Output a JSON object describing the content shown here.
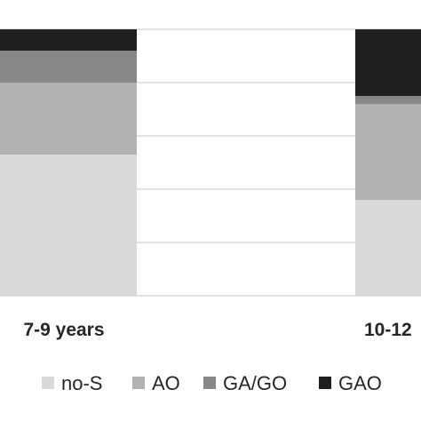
{
  "chart_data": {
    "type": "bar",
    "stacked": true,
    "normalized": true,
    "categories": [
      "7-9 years",
      "10-12"
    ],
    "series": [
      {
        "name": "no-S",
        "values": [
          53,
          36
        ],
        "color": "#d9d9d9"
      },
      {
        "name": "AO",
        "values": [
          27,
          36
        ],
        "color": "#b2b2b2"
      },
      {
        "name": "GA/GO",
        "values": [
          12,
          3
        ],
        "color": "#878787"
      },
      {
        "name": "GAO",
        "values": [
          8,
          25
        ],
        "color": "#1f1f1f"
      }
    ],
    "ylim": [
      0,
      100
    ],
    "grid": true,
    "legend_position": "bottom"
  }
}
